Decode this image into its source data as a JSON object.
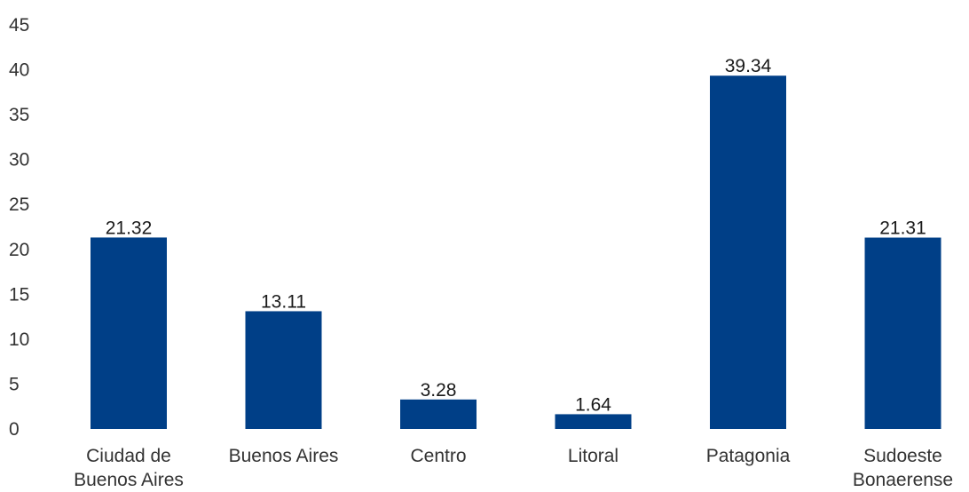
{
  "chart_data": {
    "type": "bar",
    "title": "",
    "xlabel": "",
    "ylabel": "",
    "categories": [
      [
        "Ciudad de",
        "Buenos Aires"
      ],
      [
        "Buenos Aires"
      ],
      [
        "Centro"
      ],
      [
        "Litoral"
      ],
      [
        "Patagonia"
      ],
      [
        "Sudoeste",
        "Bonaerense"
      ]
    ],
    "values": [
      21.32,
      13.11,
      3.28,
      1.64,
      39.34,
      21.31
    ],
    "value_labels": [
      "21.32",
      "13.11",
      "3.28",
      "1.64",
      "39.34",
      "21.31"
    ],
    "ylim": [
      0,
      45
    ],
    "yticks": [
      0,
      5,
      10,
      15,
      20,
      25,
      30,
      35,
      40,
      45
    ],
    "grid": false,
    "legend": "none",
    "bar_color": "#003f87"
  }
}
